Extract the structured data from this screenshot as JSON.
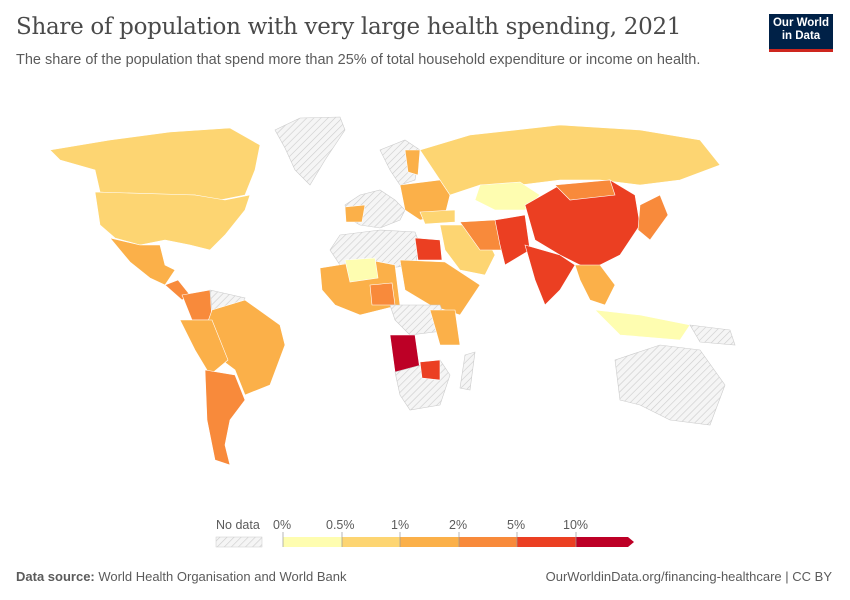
{
  "header": {
    "title": "Share of population with very large health spending, 2021",
    "subtitle": "The share of the population that spend more than 25% of total household expenditure or income on health.",
    "logo": "Our World in Data"
  },
  "legend": {
    "no_data_label": "No data",
    "bins": [
      {
        "label": "0%",
        "color": "#FEFDB0"
      },
      {
        "label": "0.5%",
        "color": "#FDD572"
      },
      {
        "label": "1%",
        "color": "#FBB049"
      },
      {
        "label": "2%",
        "color": "#F88A3B"
      },
      {
        "label": "5%",
        "color": "#EB3F22"
      },
      {
        "label": "10%",
        "color": "#BD0026"
      }
    ]
  },
  "footer": {
    "source_label": "Data source:",
    "source": "World Health Organisation and World Bank",
    "url": "OurWorldinData.org/financing-healthcare | CC BY"
  }
}
